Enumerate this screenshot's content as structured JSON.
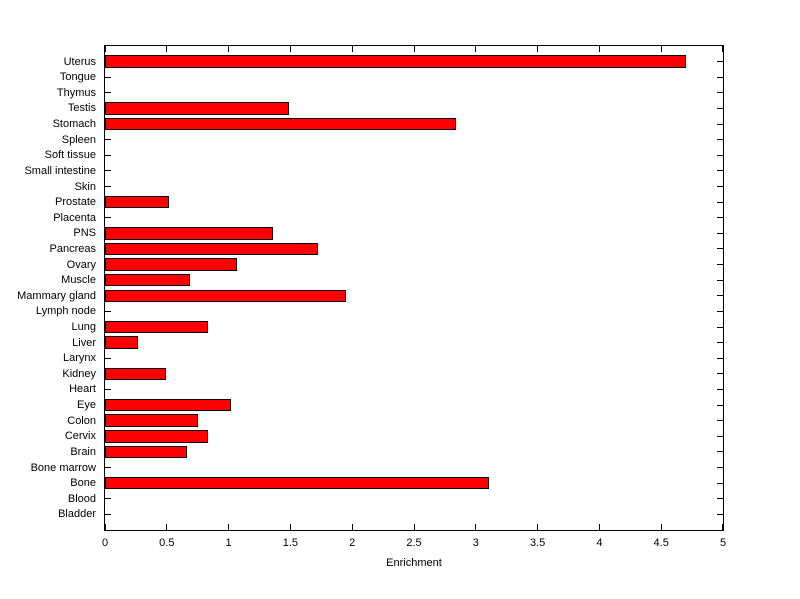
{
  "figure": {
    "background": "#ffffff",
    "plot_background": "#ffffff",
    "axis_color": "#000000",
    "text_color": "#000000"
  },
  "chart_data": {
    "type": "bar",
    "orientation": "horizontal",
    "title": "",
    "xlabel": "Enrichment",
    "ylabel": "",
    "xlim": [
      0,
      5
    ],
    "x_tick_values": [
      0,
      0.5,
      1,
      1.5,
      2,
      2.5,
      3,
      3.5,
      4,
      4.5,
      5
    ],
    "x_tick_labels": [
      "0",
      "0.5",
      "1",
      "1.5",
      "2",
      "2.5",
      "3",
      "3.5",
      "4",
      "4.5",
      "5"
    ],
    "grid": false,
    "legend_position": "none",
    "bar_color": "#ff0000",
    "bar_edge_color": "#000000",
    "categories": [
      "Uterus",
      "Tongue",
      "Thymus",
      "Testis",
      "Stomach",
      "Spleen",
      "Soft tissue",
      "Small intestine",
      "Skin",
      "Prostate",
      "Placenta",
      "PNS",
      "Pancreas",
      "Ovary",
      "Muscle",
      "Mammary gland",
      "Lymph node",
      "Lung",
      "Liver",
      "Larynx",
      "Kidney",
      "Heart",
      "Eye",
      "Colon",
      "Cervix",
      "Brain",
      "Bone marrow",
      "Bone",
      "Blood",
      "Bladder"
    ],
    "values": [
      4.7,
      0,
      0,
      1.49,
      2.84,
      0,
      0,
      0,
      0,
      0.52,
      0,
      1.36,
      1.72,
      1.07,
      0.69,
      1.95,
      0,
      0.83,
      0.27,
      0,
      0.49,
      0,
      1.02,
      0.75,
      0.83,
      0.66,
      0,
      3.11,
      0,
      0
    ]
  }
}
